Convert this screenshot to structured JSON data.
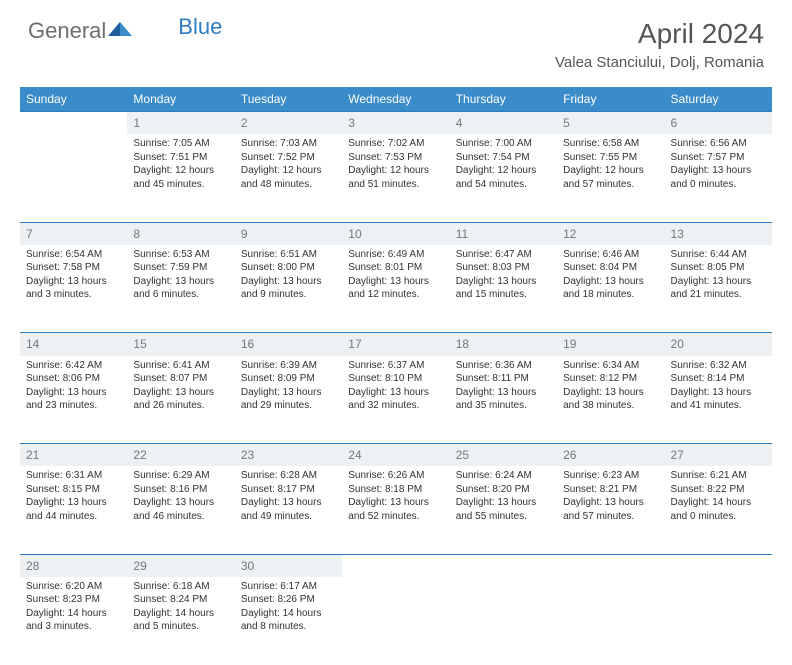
{
  "brand": {
    "part1": "General",
    "part2": "Blue"
  },
  "title": "April 2024",
  "location": "Valea Stanciului, Dolj, Romania",
  "colors": {
    "header_bg": "#3a8bc9",
    "header_text": "#ffffff",
    "daynum_bg": "#eef1f3",
    "rule": "#2f7bbf",
    "logo_gray": "#6d6d6d",
    "logo_blue": "#2f7bbf"
  },
  "weekdays": [
    "Sunday",
    "Monday",
    "Tuesday",
    "Wednesday",
    "Thursday",
    "Friday",
    "Saturday"
  ],
  "weeks": [
    [
      null,
      {
        "n": "1",
        "sr": "7:05 AM",
        "ss": "7:51 PM",
        "dl": "12 hours and 45 minutes."
      },
      {
        "n": "2",
        "sr": "7:03 AM",
        "ss": "7:52 PM",
        "dl": "12 hours and 48 minutes."
      },
      {
        "n": "3",
        "sr": "7:02 AM",
        "ss": "7:53 PM",
        "dl": "12 hours and 51 minutes."
      },
      {
        "n": "4",
        "sr": "7:00 AM",
        "ss": "7:54 PM",
        "dl": "12 hours and 54 minutes."
      },
      {
        "n": "5",
        "sr": "6:58 AM",
        "ss": "7:55 PM",
        "dl": "12 hours and 57 minutes."
      },
      {
        "n": "6",
        "sr": "6:56 AM",
        "ss": "7:57 PM",
        "dl": "13 hours and 0 minutes."
      }
    ],
    [
      {
        "n": "7",
        "sr": "6:54 AM",
        "ss": "7:58 PM",
        "dl": "13 hours and 3 minutes."
      },
      {
        "n": "8",
        "sr": "6:53 AM",
        "ss": "7:59 PM",
        "dl": "13 hours and 6 minutes."
      },
      {
        "n": "9",
        "sr": "6:51 AM",
        "ss": "8:00 PM",
        "dl": "13 hours and 9 minutes."
      },
      {
        "n": "10",
        "sr": "6:49 AM",
        "ss": "8:01 PM",
        "dl": "13 hours and 12 minutes."
      },
      {
        "n": "11",
        "sr": "6:47 AM",
        "ss": "8:03 PM",
        "dl": "13 hours and 15 minutes."
      },
      {
        "n": "12",
        "sr": "6:46 AM",
        "ss": "8:04 PM",
        "dl": "13 hours and 18 minutes."
      },
      {
        "n": "13",
        "sr": "6:44 AM",
        "ss": "8:05 PM",
        "dl": "13 hours and 21 minutes."
      }
    ],
    [
      {
        "n": "14",
        "sr": "6:42 AM",
        "ss": "8:06 PM",
        "dl": "13 hours and 23 minutes."
      },
      {
        "n": "15",
        "sr": "6:41 AM",
        "ss": "8:07 PM",
        "dl": "13 hours and 26 minutes."
      },
      {
        "n": "16",
        "sr": "6:39 AM",
        "ss": "8:09 PM",
        "dl": "13 hours and 29 minutes."
      },
      {
        "n": "17",
        "sr": "6:37 AM",
        "ss": "8:10 PM",
        "dl": "13 hours and 32 minutes."
      },
      {
        "n": "18",
        "sr": "6:36 AM",
        "ss": "8:11 PM",
        "dl": "13 hours and 35 minutes."
      },
      {
        "n": "19",
        "sr": "6:34 AM",
        "ss": "8:12 PM",
        "dl": "13 hours and 38 minutes."
      },
      {
        "n": "20",
        "sr": "6:32 AM",
        "ss": "8:14 PM",
        "dl": "13 hours and 41 minutes."
      }
    ],
    [
      {
        "n": "21",
        "sr": "6:31 AM",
        "ss": "8:15 PM",
        "dl": "13 hours and 44 minutes."
      },
      {
        "n": "22",
        "sr": "6:29 AM",
        "ss": "8:16 PM",
        "dl": "13 hours and 46 minutes."
      },
      {
        "n": "23",
        "sr": "6:28 AM",
        "ss": "8:17 PM",
        "dl": "13 hours and 49 minutes."
      },
      {
        "n": "24",
        "sr": "6:26 AM",
        "ss": "8:18 PM",
        "dl": "13 hours and 52 minutes."
      },
      {
        "n": "25",
        "sr": "6:24 AM",
        "ss": "8:20 PM",
        "dl": "13 hours and 55 minutes."
      },
      {
        "n": "26",
        "sr": "6:23 AM",
        "ss": "8:21 PM",
        "dl": "13 hours and 57 minutes."
      },
      {
        "n": "27",
        "sr": "6:21 AM",
        "ss": "8:22 PM",
        "dl": "14 hours and 0 minutes."
      }
    ],
    [
      {
        "n": "28",
        "sr": "6:20 AM",
        "ss": "8:23 PM",
        "dl": "14 hours and 3 minutes."
      },
      {
        "n": "29",
        "sr": "6:18 AM",
        "ss": "8:24 PM",
        "dl": "14 hours and 5 minutes."
      },
      {
        "n": "30",
        "sr": "6:17 AM",
        "ss": "8:26 PM",
        "dl": "14 hours and 8 minutes."
      },
      null,
      null,
      null,
      null
    ]
  ],
  "labels": {
    "sunrise": "Sunrise:",
    "sunset": "Sunset:",
    "daylight": "Daylight:"
  }
}
